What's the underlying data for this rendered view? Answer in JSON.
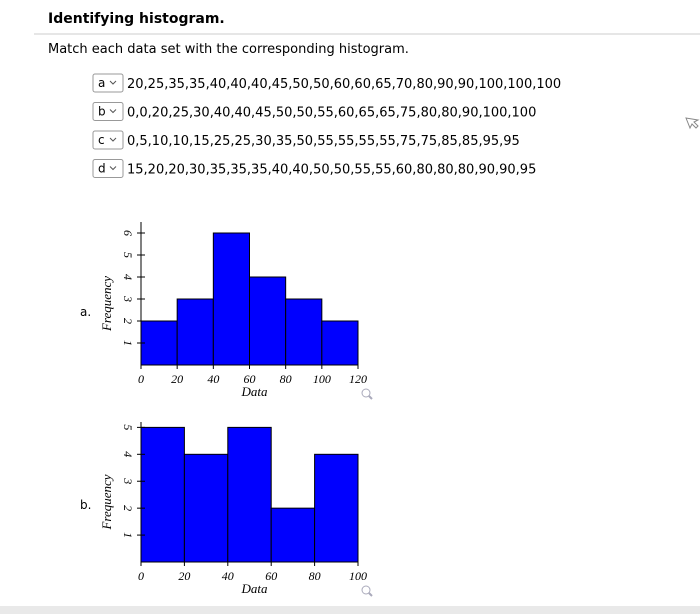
{
  "header": {
    "title": "Identifying histogram."
  },
  "instructions": "Match each data set with the corresponding histogram.",
  "items": [
    {
      "choice": "a",
      "data": "20,25,35,35,40,40,40,45,50,50,60,60,65,70,80,90,90,100,100,100"
    },
    {
      "choice": "b",
      "data": "0,0,20,25,30,40,40,45,50,50,55,60,65,65,75,80,80,90,100,100"
    },
    {
      "choice": "c",
      "data": "0,5,10,10,15,25,25,30,35,50,55,55,55,55,75,75,85,85,95,95"
    },
    {
      "choice": "d",
      "data": "15,20,20,30,35,35,35,40,40,50,50,55,55,60,80,80,80,90,90,95"
    }
  ],
  "charts": [
    {
      "type": "histogram",
      "label": "a.",
      "xlabel": "Data",
      "ylabel": "Frequency",
      "color": "#0000ff",
      "bins": [
        0,
        20,
        40,
        60,
        80,
        100,
        120
      ],
      "values": [
        2,
        3,
        6,
        4,
        3,
        2
      ],
      "xlim": [
        0,
        120
      ],
      "ylim": [
        0,
        6.5
      ],
      "xticks": [
        0,
        20,
        40,
        60,
        80,
        100,
        120
      ],
      "yticks": [
        1,
        2,
        3,
        4,
        5,
        6
      ]
    },
    {
      "type": "histogram",
      "label": "b.",
      "xlabel": "Data",
      "ylabel": "Frequency",
      "color": "#0000ff",
      "bins": [
        0,
        20,
        40,
        60,
        80,
        100
      ],
      "values": [
        5,
        4,
        5,
        2,
        4
      ],
      "xlim": [
        0,
        100
      ],
      "ylim": [
        0,
        5.2
      ],
      "xticks": [
        0,
        20,
        40,
        60,
        80,
        100
      ],
      "yticks": [
        1,
        2,
        3,
        4,
        5
      ]
    }
  ]
}
